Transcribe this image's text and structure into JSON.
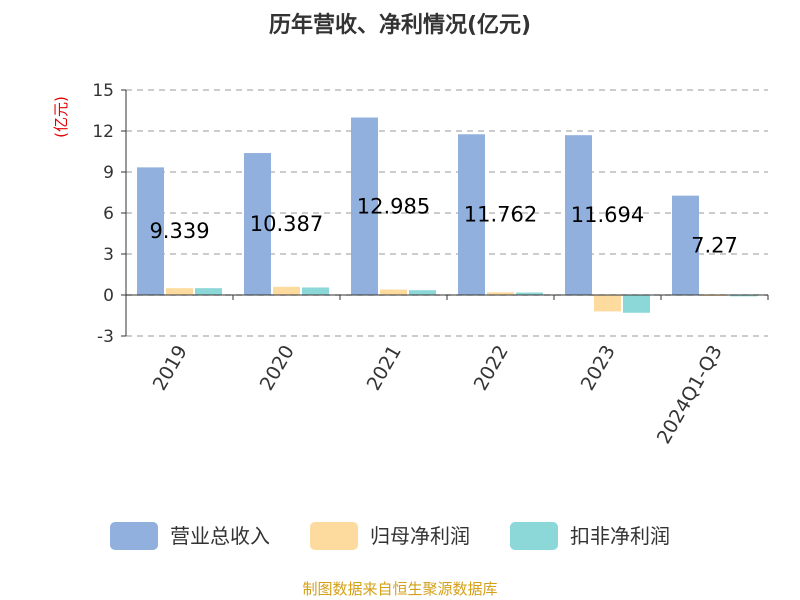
{
  "title": "历年营收、净利情况(亿元)",
  "unit_label": "(亿元)",
  "footer": "制图数据来自恒生聚源数据库",
  "colors": {
    "revenue": "#91b0de",
    "net_profit": "#fddb9e",
    "deducted_profit": "#8cd8d8",
    "grid": "#bbbbbb",
    "axis": "#333333",
    "footer": "#d4a017",
    "unit": "#e00000"
  },
  "chart_data": {
    "type": "bar",
    "categories": [
      "2019",
      "2020",
      "2021",
      "2022",
      "2023",
      "2024Q1-Q3"
    ],
    "series": [
      {
        "name": "营业总收入",
        "key": "revenue",
        "values": [
          9.339,
          10.387,
          12.985,
          11.762,
          11.694,
          7.27
        ],
        "labels": [
          "9.339",
          "10.387",
          "12.985",
          "11.762",
          "11.694",
          "7.27"
        ]
      },
      {
        "name": "归母净利润",
        "key": "net_profit",
        "values": [
          0.5,
          0.6,
          0.4,
          0.2,
          -1.2,
          -0.05
        ]
      },
      {
        "name": "扣非净利润",
        "key": "deducted_profit",
        "values": [
          0.5,
          0.55,
          0.35,
          0.18,
          -1.3,
          -0.1
        ]
      }
    ],
    "yticks": [
      "15",
      "12",
      "9",
      "6",
      "3",
      "0",
      "-3"
    ],
    "ylim": [
      -3,
      15
    ],
    "grid": true,
    "legend_position": "bottom"
  }
}
